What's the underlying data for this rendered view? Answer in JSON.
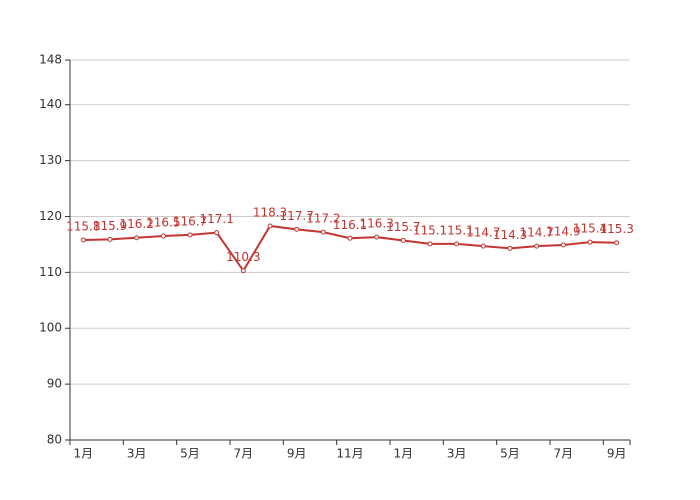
{
  "chart_data": {
    "type": "line",
    "categories": [
      "1月",
      null,
      "3月",
      null,
      "5月",
      null,
      "7月",
      null,
      "9月",
      null,
      "11月",
      null,
      "1月",
      null,
      "3月",
      null,
      "5月",
      null,
      "7月",
      null,
      "9月"
    ],
    "values": [
      115.8,
      115.9,
      116.2,
      116.5,
      116.7,
      117.1,
      110.3,
      118.3,
      117.7,
      117.2,
      116.1,
      116.3,
      115.7,
      115.1,
      115.1,
      114.7,
      114.3,
      114.7,
      114.9,
      115.4,
      115.3
    ],
    "color": "#c23531",
    "ylim": [
      80,
      148
    ],
    "yticks": [
      80,
      90,
      100,
      110,
      120,
      130,
      140,
      148
    ],
    "grid": true
  }
}
